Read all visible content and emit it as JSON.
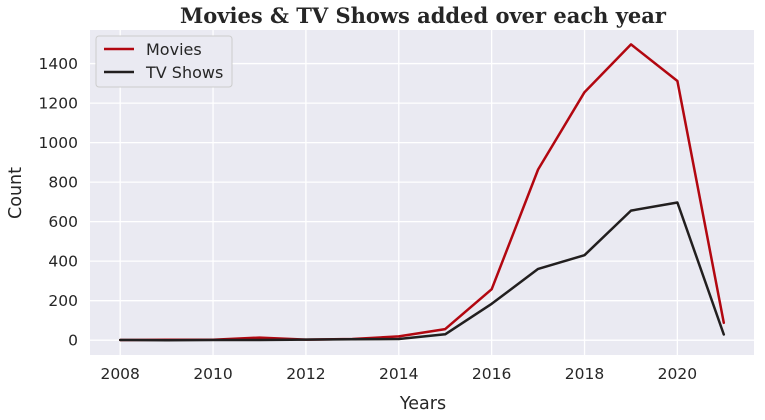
{
  "chart_data": {
    "type": "line",
    "title": "Movies & TV Shows added over each year",
    "xlabel": "Years",
    "ylabel": "Count",
    "x": [
      2008,
      2009,
      2010,
      2011,
      2012,
      2013,
      2014,
      2015,
      2016,
      2017,
      2018,
      2019,
      2020,
      2021
    ],
    "xticks": [
      "2008",
      "2010",
      "2012",
      "2014",
      "2016",
      "2018",
      "2020"
    ],
    "yticks": [
      "0",
      "200",
      "400",
      "600",
      "800",
      "1000",
      "1200",
      "1400"
    ],
    "xlim": [
      2007.35,
      2021.65
    ],
    "ylim": [
      -75,
      1570
    ],
    "grid": true,
    "legend_position": "top-left",
    "background": "#eaeaf2",
    "series": [
      {
        "name": "Movies",
        "color": "#b20710",
        "values": [
          1,
          2,
          2,
          13,
          3,
          6,
          19,
          56,
          258,
          864,
          1255,
          1497,
          1312,
          88
        ]
      },
      {
        "name": "TV Shows",
        "color": "#221f1f",
        "values": [
          1,
          0,
          1,
          1,
          3,
          5,
          6,
          30,
          184,
          361,
          430,
          656,
          697,
          29
        ]
      }
    ]
  }
}
